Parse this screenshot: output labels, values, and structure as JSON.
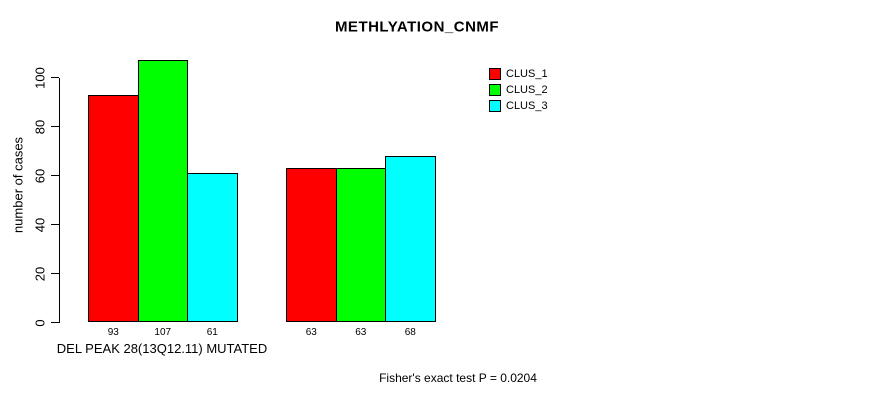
{
  "title": "METHLYATION_CNMF",
  "annotation": "Fisher's exact test P = 0.0204",
  "chart_data": {
    "type": "bar",
    "title": "METHLYATION_CNMF",
    "xlabel": "DEL PEAK 28(13Q12.11) MUTATED",
    "ylabel": "number of cases",
    "annotation": "Fisher's exact test P = 0.0204",
    "yticks": [
      0,
      20,
      40,
      60,
      80,
      100
    ],
    "ylim": [
      0,
      110
    ],
    "grid": false,
    "legend_position": "inside-top-right",
    "legend_entries": [
      "CLUS_1",
      "CLUS_2",
      "CLUS_3"
    ],
    "group_count": 2,
    "series": [
      {
        "name": "CLUS_1",
        "color": "#ff0000",
        "values": [
          93,
          63
        ]
      },
      {
        "name": "CLUS_2",
        "color": "#00ff00",
        "values": [
          107,
          63
        ]
      },
      {
        "name": "CLUS_3",
        "color": "#00ffff",
        "values": [
          61,
          68
        ]
      }
    ],
    "bar_value_labels": [
      [
        93,
        107,
        61
      ],
      [
        63,
        63,
        68
      ]
    ],
    "axis_color": "#000000",
    "text_color": "#000000",
    "background_color": "#ffffff"
  }
}
